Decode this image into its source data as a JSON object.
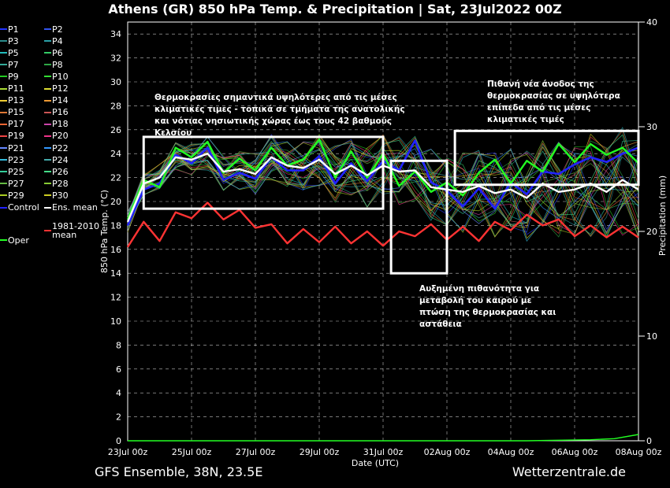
{
  "header": {
    "title": "Athens  (GR)  850 hPa Temp. & Precipitation | Sat, 23Jul2022 00Z"
  },
  "footer": {
    "left": "GFS Ensemble, 38N, 23.5E",
    "right": "Wetterzentrale.de"
  },
  "legend": [
    {
      "label": "P1",
      "color": "#2233ff"
    },
    {
      "label": "P2",
      "color": "#3355ee"
    },
    {
      "label": "P3",
      "color": "#2b8c8c"
    },
    {
      "label": "P4",
      "color": "#2aa0a8"
    },
    {
      "label": "P5",
      "color": "#22bbbb"
    },
    {
      "label": "P6",
      "color": "#33cc66"
    },
    {
      "label": "P7",
      "color": "#33aa99"
    },
    {
      "label": "P8",
      "color": "#2ea845"
    },
    {
      "label": "P9",
      "color": "#22cc22"
    },
    {
      "label": "P10",
      "color": "#33dd33"
    },
    {
      "label": "P11",
      "color": "#aadd33"
    },
    {
      "label": "P12",
      "color": "#dddd33"
    },
    {
      "label": "P13",
      "color": "#eecc33"
    },
    {
      "label": "P14",
      "color": "#ee9933"
    },
    {
      "label": "P15",
      "color": "#dd7733"
    },
    {
      "label": "P16",
      "color": "#cc5555"
    },
    {
      "label": "P17",
      "color": "#ee6633"
    },
    {
      "label": "P18",
      "color": "#cc44aa"
    },
    {
      "label": "P19",
      "color": "#ee4444"
    },
    {
      "label": "P20",
      "color": "#ee3388"
    },
    {
      "label": "P21",
      "color": "#6688ff"
    },
    {
      "label": "P22",
      "color": "#3399ff"
    },
    {
      "label": "P23",
      "color": "#33bbdd"
    },
    {
      "label": "P24",
      "color": "#44aaaa"
    },
    {
      "label": "P25",
      "color": "#33cc99"
    },
    {
      "label": "P26",
      "color": "#44dd88"
    },
    {
      "label": "P27",
      "color": "#66bb44"
    },
    {
      "label": "P28",
      "color": "#88cc33"
    },
    {
      "label": "P29",
      "color": "#aacc22"
    },
    {
      "label": "P30",
      "color": "#cccc22"
    },
    {
      "label": "Control",
      "color": "#2222ff"
    },
    {
      "label": "Ens. mean",
      "color": "#ffffff"
    },
    {
      "label": "1981-2010 mean",
      "color": "#ff3333"
    },
    {
      "label": "Oper",
      "color": "#22ff22"
    }
  ],
  "annotations": [
    {
      "text": "Θερμοκρασίες σημαντικά υψηλότερες από τις μέσες κλιματικές τιμες - τοπικά σε τμήματα της ανατολικής και νότιας νησιωτικής χώρας έως τους 42 βαθμούς Κελσίου"
    },
    {
      "text": "Πιθανή νέα άνοδος της θερμοκρασίας σε υψηλότερα επίπεδα από τις μέσες κλιματικές τιμές"
    },
    {
      "text": "Αυξημένη πιθανότητα για μεταβολή του καιρού με πτώση της θερμοκρασίας και αστάθεια"
    }
  ],
  "chart_data": {
    "type": "line",
    "title": "Athens  (GR)  850 hPa Temp. & Precipitation | Sat, 23Jul2022 00Z",
    "xlabel": "Date (UTC)",
    "ylabel": "850 hPa Temp. (°C)",
    "y2label": "Precipitation (mm)",
    "x_ticks": [
      "23Jul 00z",
      "25Jul 00z",
      "27Jul 00z",
      "29Jul 00z",
      "31Jul 00z",
      "02Aug 00z",
      "04Aug 00z",
      "06Aug 00z",
      "08Aug 00z"
    ],
    "ylim": [
      0,
      35
    ],
    "yticks": [
      0,
      2,
      4,
      6,
      8,
      10,
      12,
      14,
      16,
      18,
      20,
      22,
      24,
      26,
      28,
      30,
      32,
      34
    ],
    "y2lim": [
      0,
      40
    ],
    "y2ticks": [
      0,
      10,
      20,
      30,
      40
    ],
    "x_range_hours": [
      0,
      384
    ],
    "grid": true,
    "series": [
      {
        "name": "Ens. mean",
        "color": "#ffffff",
        "x": [
          0,
          12,
          24,
          36,
          48,
          60,
          72,
          84,
          96,
          108,
          120,
          132,
          144,
          156,
          168,
          180,
          192,
          204,
          216,
          228,
          240,
          252,
          264,
          276,
          288,
          300,
          312,
          324,
          336,
          348,
          360,
          372,
          384
        ],
        "values": [
          18.3,
          21.5,
          22.0,
          23.7,
          23.5,
          24.0,
          22.5,
          22.7,
          22.3,
          23.7,
          23.0,
          22.8,
          23.5,
          22.3,
          23.0,
          22.2,
          23.0,
          22.5,
          22.6,
          21.2,
          21.0,
          20.8,
          21.3,
          20.7,
          21.0,
          20.3,
          21.5,
          20.8,
          21.0,
          21.5,
          20.8,
          21.8,
          21.0
        ]
      },
      {
        "name": "1981-2010 mean",
        "color": "#ff3333",
        "x": [
          0,
          12,
          24,
          36,
          48,
          60,
          72,
          84,
          96,
          108,
          120,
          132,
          144,
          156,
          168,
          180,
          192,
          204,
          216,
          228,
          240,
          252,
          264,
          276,
          288,
          300,
          312,
          324,
          336,
          348,
          360,
          372,
          384
        ],
        "values": [
          16.2,
          18.3,
          16.7,
          19.1,
          18.6,
          19.9,
          18.5,
          19.3,
          17.8,
          18.1,
          16.5,
          17.7,
          16.6,
          17.9,
          16.5,
          17.5,
          16.3,
          17.5,
          17.1,
          18.1,
          16.8,
          17.9,
          16.7,
          18.3,
          17.6,
          18.9,
          18.0,
          18.5,
          17.1,
          18.0,
          17.0,
          17.9,
          17.0
        ]
      },
      {
        "name": "Oper",
        "color": "#22ff22",
        "x": [
          0,
          12,
          24,
          36,
          48,
          60,
          72,
          84,
          96,
          108,
          120,
          132,
          144,
          156,
          168,
          180,
          192,
          204,
          216,
          228,
          240,
          252,
          264,
          276,
          288,
          300,
          312,
          324,
          336,
          348,
          360,
          372,
          384
        ],
        "values": [
          18.5,
          21.8,
          21.2,
          24.5,
          23.7,
          25.0,
          22.4,
          23.6,
          22.6,
          24.5,
          23.0,
          23.5,
          25.2,
          22.0,
          24.2,
          22.0,
          24.0,
          21.3,
          22.5,
          20.8,
          21.6,
          20.5,
          22.4,
          23.5,
          21.5,
          23.4,
          22.5,
          24.8,
          23.3,
          24.8,
          23.9,
          24.5,
          23.2
        ]
      },
      {
        "name": "Control",
        "color": "#2222ff",
        "x": [
          0,
          12,
          24,
          36,
          48,
          60,
          72,
          84,
          96,
          108,
          120,
          132,
          144,
          156,
          168,
          180,
          192,
          204,
          216,
          228,
          240,
          252,
          264,
          276,
          288,
          300,
          312,
          324,
          336,
          348,
          360,
          372,
          384
        ],
        "values": [
          18.0,
          21.0,
          21.5,
          23.9,
          23.2,
          24.5,
          21.8,
          22.4,
          21.9,
          23.7,
          22.6,
          22.6,
          23.8,
          21.5,
          23.2,
          21.7,
          23.4,
          22.6,
          25.1,
          21.6,
          20.9,
          19.6,
          21.1,
          19.4,
          21.6,
          20.6,
          22.5,
          22.3,
          23.1,
          23.7,
          23.3,
          24.0,
          24.5
        ]
      },
      {
        "name": "Precipitation",
        "color": "#22ff22",
        "axis": "y2",
        "x": [
          0,
          60,
          120,
          180,
          240,
          300,
          348,
          366,
          384
        ],
        "values": [
          0,
          0,
          0,
          0,
          0,
          0,
          0.1,
          0.2,
          0.6
        ]
      }
    ],
    "boxes": [
      {
        "x0": 12,
        "x1": 192,
        "y0": 19.4,
        "y1": 25.4
      },
      {
        "x0": 198,
        "x1": 240,
        "y0": 14.0,
        "y1": 23.4
      },
      {
        "x0": 246,
        "x1": 384,
        "y0": 21.4,
        "y1": 25.9
      }
    ]
  }
}
